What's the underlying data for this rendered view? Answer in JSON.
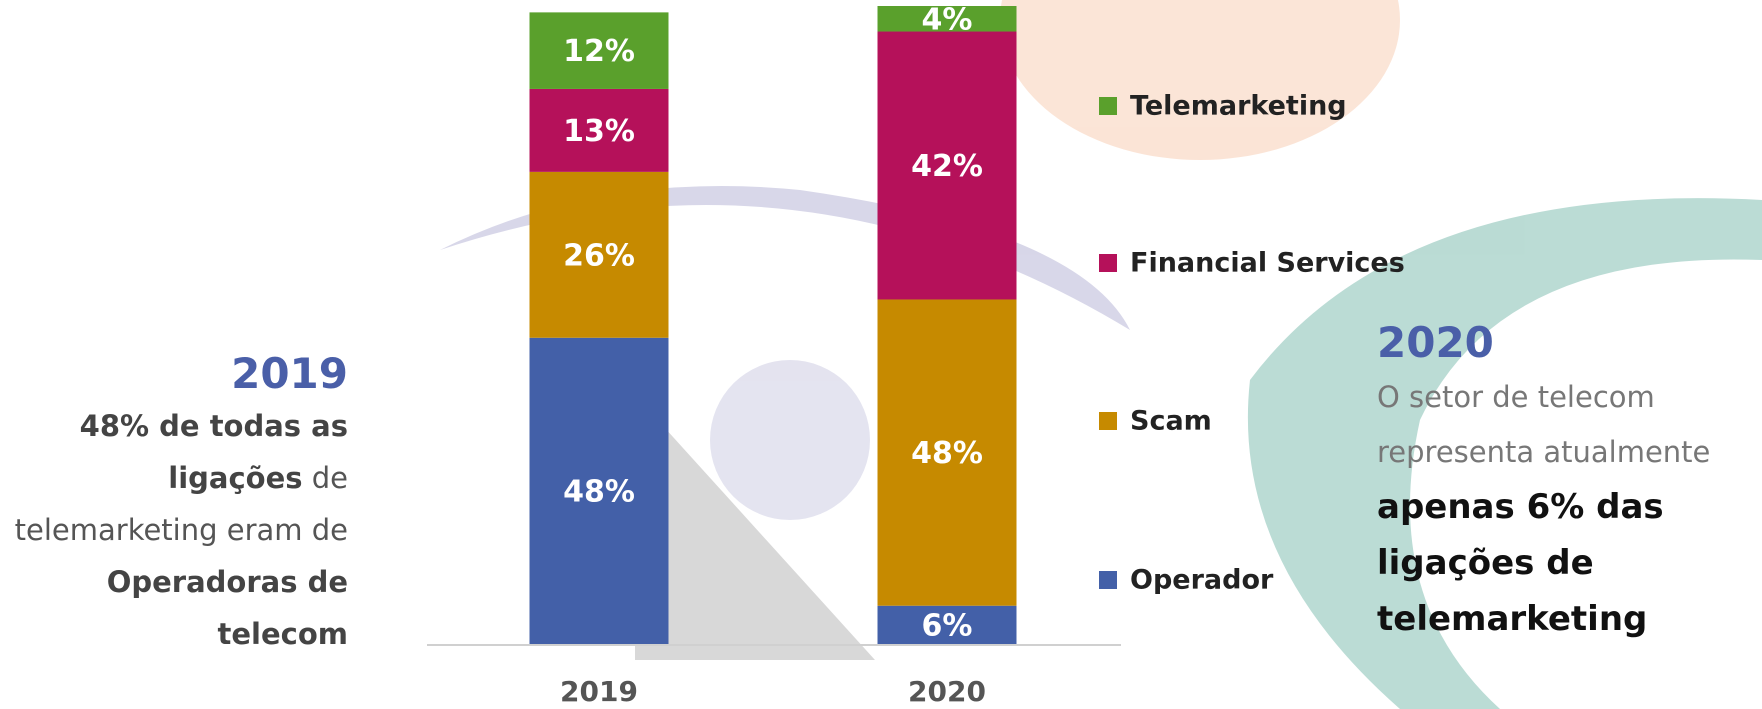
{
  "chart_data": {
    "type": "stacked-bar",
    "categories": [
      "2019",
      "2020"
    ],
    "ylim": [
      0,
      100
    ],
    "series": [
      {
        "name": "Operador",
        "color": "#4360a8",
        "values": [
          48,
          6
        ],
        "value_labels": [
          "48%",
          "6%"
        ]
      },
      {
        "name": "Scam",
        "color": "#c68a00",
        "values": [
          26,
          48
        ],
        "value_labels": [
          "26%",
          "48%"
        ]
      },
      {
        "name": "Financial Services",
        "color": "#b5115a",
        "values": [
          13,
          42
        ],
        "value_labels": [
          "13%",
          "42%"
        ]
      },
      {
        "name": "Telemarketing",
        "color": "#5aa02c",
        "values": [
          12,
          4
        ],
        "value_labels": [
          "12%",
          "4%"
        ]
      }
    ]
  },
  "left_note": {
    "heading": "2019",
    "runs": [
      "48% de todas as ligações",
      "de telemarketing eram de",
      "Operadoras de telecom"
    ]
  },
  "right_note": {
    "heading": "2020",
    "runs": [
      "O setor de telecom representa atualmente",
      "apenas 6% das ligações de telemarketing"
    ]
  }
}
